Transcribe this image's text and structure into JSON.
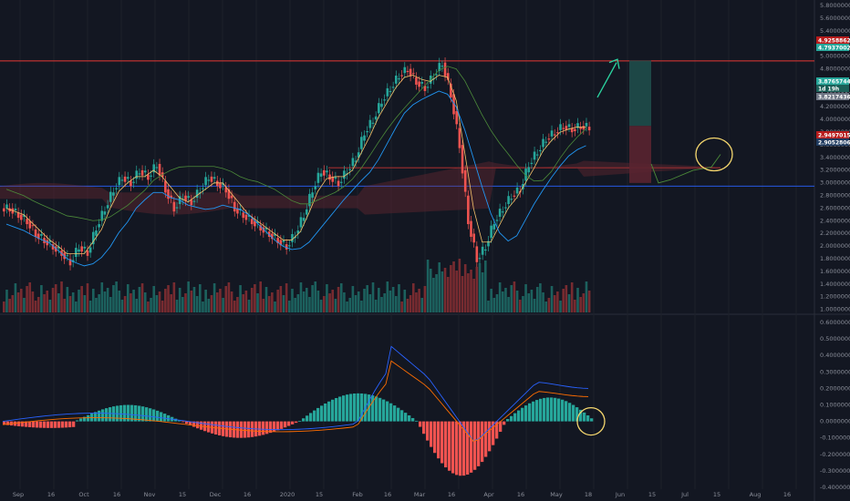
{
  "price_axis": {
    "labels": [
      "5.80000000",
      "5.60000000",
      "5.40000000",
      "5.20000000",
      "5.00000000",
      "4.80000000",
      "4.60000000",
      "4.40000000",
      "4.20000000",
      "4.00000000",
      "3.80000000",
      "3.60000000",
      "3.40000000",
      "3.20000000",
      "3.00000000",
      "2.80000000",
      "2.60000000",
      "2.40000000",
      "2.20000000",
      "2.00000000",
      "1.80000000",
      "1.60000000",
      "1.40000000",
      "1.20000000",
      "1.00000000"
    ]
  },
  "macd_axis": {
    "labels": [
      "0.60000000",
      "0.50000000",
      "0.40000000",
      "0.30000000",
      "0.20000000",
      "0.10000000",
      "0.00000000",
      "-0.10000000",
      "-0.20000000",
      "-0.30000000",
      "-0.40000000"
    ]
  },
  "date_axis": {
    "labels": [
      "Sep",
      "16",
      "Oct",
      "16",
      "Nov",
      "15",
      "Dec",
      "16",
      "2020",
      "15",
      "Feb",
      "16",
      "Mar",
      "16",
      "Apr",
      "16",
      "May",
      "18",
      "Jun",
      "15",
      "Jul",
      "15",
      "Aug",
      "16"
    ]
  },
  "price_tags": [
    {
      "text": "4.92588629",
      "color": "#b71c1c"
    },
    {
      "text": "4.79370022",
      "color": "#26a69a"
    },
    {
      "text": "3.87657444",
      "color": "#26a69a"
    },
    {
      "text": "1d 19h",
      "color": "#1b5e57"
    },
    {
      "text": "3.82174366",
      "color": "#6f7684"
    },
    {
      "text": "2.94970152",
      "color": "#b71c1c"
    },
    {
      "text": "2.90528066",
      "color": "#1e3a5f"
    }
  ],
  "chart_data": {
    "type": "candlestick",
    "series": [
      {
        "name": "price",
        "values": [
          2.6,
          2.5,
          2.4,
          2.2,
          2.1,
          2.0,
          1.9,
          1.75,
          2.0,
          1.9,
          2.3,
          2.6,
          2.9,
          3.1,
          3.0,
          3.2,
          3.1,
          3.3,
          2.9,
          2.6,
          2.8,
          2.7,
          2.9,
          3.1,
          3.0,
          2.9,
          2.6,
          2.5,
          2.4,
          2.3,
          2.2,
          2.1,
          2.0,
          2.2,
          2.5,
          2.9,
          3.2,
          3.1,
          3.0,
          3.2,
          3.4,
          3.8,
          4.0,
          4.3,
          4.5,
          4.7,
          4.8,
          4.6,
          4.5,
          4.7,
          4.9,
          4.4,
          3.6,
          2.4,
          1.8,
          2.0,
          2.4,
          2.6,
          2.8,
          2.9,
          3.3,
          3.5,
          3.7,
          3.8,
          3.9,
          3.85,
          3.9,
          3.88
        ]
      }
    ],
    "ylim": [
      1.0,
      5.8
    ],
    "resistance_level": 4.92588629,
    "support_level": 2.94970152,
    "macd": {
      "ylim": [
        -0.4,
        0.6
      ]
    }
  }
}
